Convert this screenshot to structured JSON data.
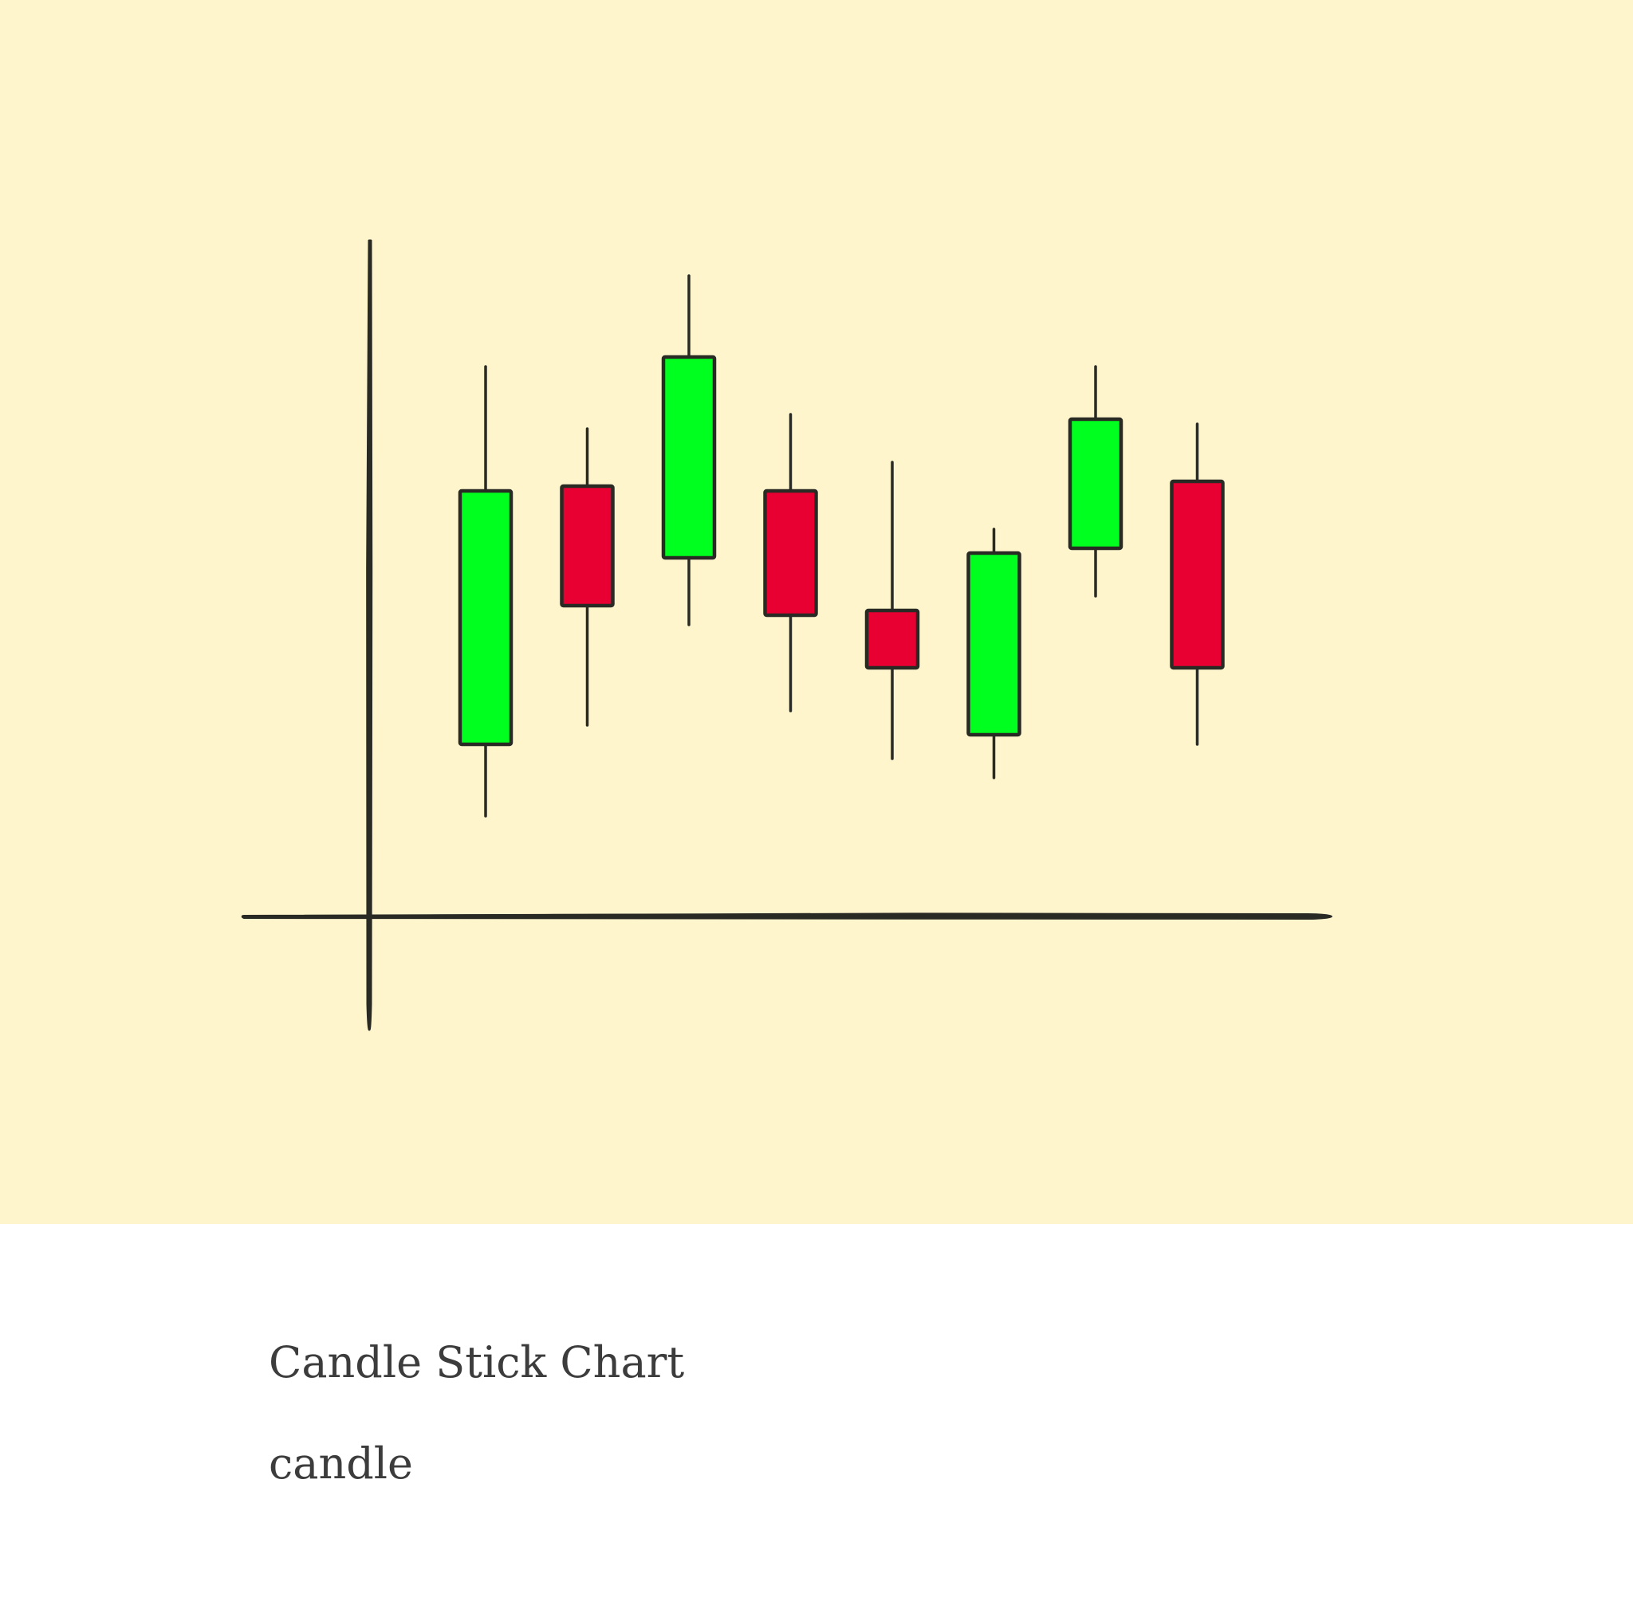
{
  "card": {
    "title": "Candle Stick Chart",
    "tag": "candle"
  },
  "colors": {
    "background": "#fef5cd",
    "up": "#00ff1e",
    "down": "#e80033",
    "ink": "#2a2a24"
  },
  "chart_data": {
    "type": "candlestick",
    "candles": [
      {
        "open": 18,
        "close": 44.5,
        "high": 57.5,
        "low": 10.5
      },
      {
        "open": 45,
        "close": 32.5,
        "high": 51,
        "low": 20
      },
      {
        "open": 37.5,
        "close": 58.5,
        "high": 67,
        "low": 30.5
      },
      {
        "open": 44.5,
        "close": 31.5,
        "high": 52.5,
        "low": 21.5
      },
      {
        "open": 32,
        "close": 26,
        "high": 47.5,
        "low": 16.5
      },
      {
        "open": 19,
        "close": 38,
        "high": 40.5,
        "low": 14.5
      },
      {
        "open": 38.5,
        "close": 52,
        "high": 57.5,
        "low": 33.5
      },
      {
        "open": 45.5,
        "close": 26,
        "high": 51.5,
        "low": 18
      }
    ]
  }
}
